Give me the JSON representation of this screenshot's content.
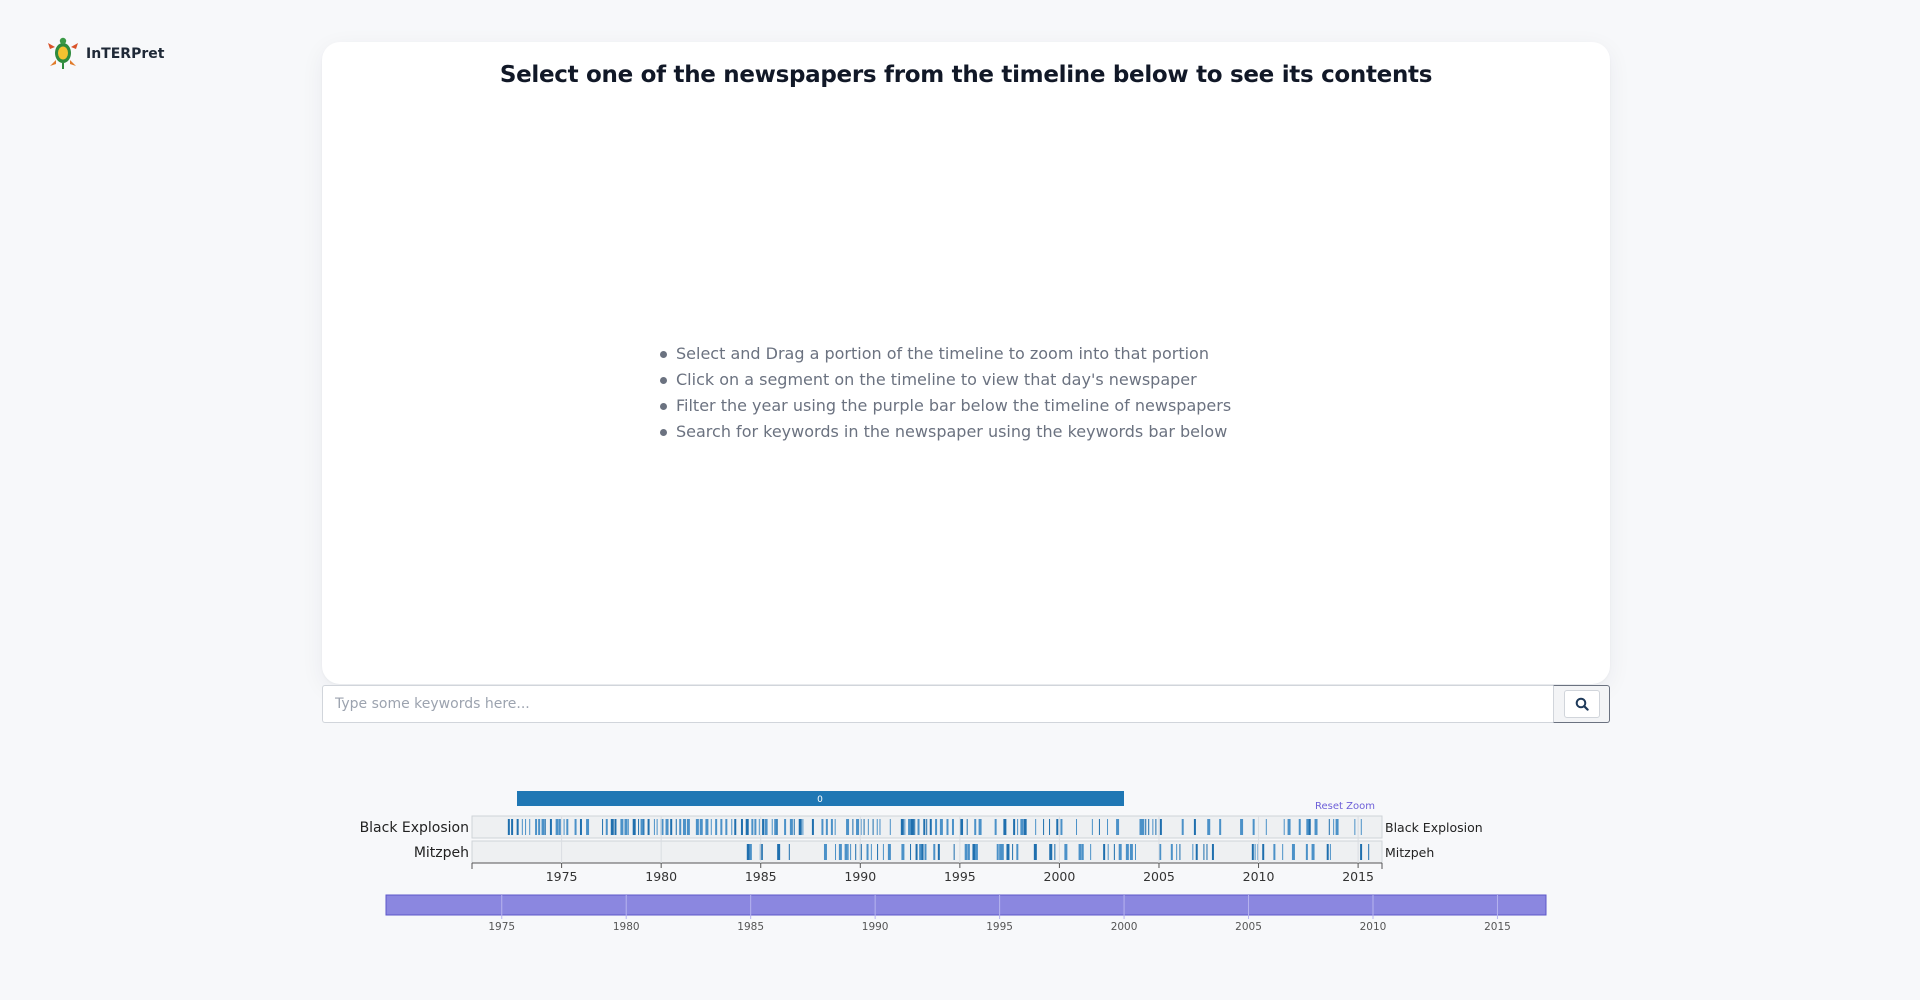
{
  "app": {
    "name": "InTERPret"
  },
  "panel": {
    "title": "Select one of the newspapers from the timeline below to see its contents",
    "instructions": [
      "Select and Drag a portion of the timeline to zoom into that portion",
      "Click on a segment on the timeline to view that day's newspaper",
      "Filter the year using the purple bar below the timeline of newspapers",
      "Search for keywords in the newspaper using the keywords bar below"
    ]
  },
  "search": {
    "placeholder": "Type some keywords here...",
    "value": ""
  },
  "colors": {
    "accent": "#1f77b4",
    "brush": "#8b87e0",
    "reset": "#6d5fd8"
  },
  "timeline": {
    "reset_label": "Reset Zoom",
    "selection_label": "0",
    "ticks": [
      "1975",
      "1980",
      "1985",
      "1990",
      "1995",
      "2000",
      "2005",
      "2010",
      "2015"
    ],
    "rows": [
      {
        "name": "Black Explosion",
        "start_year": 1972,
        "end_year": 2015
      },
      {
        "name": "Mitzpeh",
        "start_year": 1984,
        "end_year": 2015
      }
    ]
  },
  "brush": {
    "ticks": [
      "1975",
      "1980",
      "1985",
      "1990",
      "1995",
      "2000",
      "2005",
      "2010",
      "2015"
    ]
  }
}
